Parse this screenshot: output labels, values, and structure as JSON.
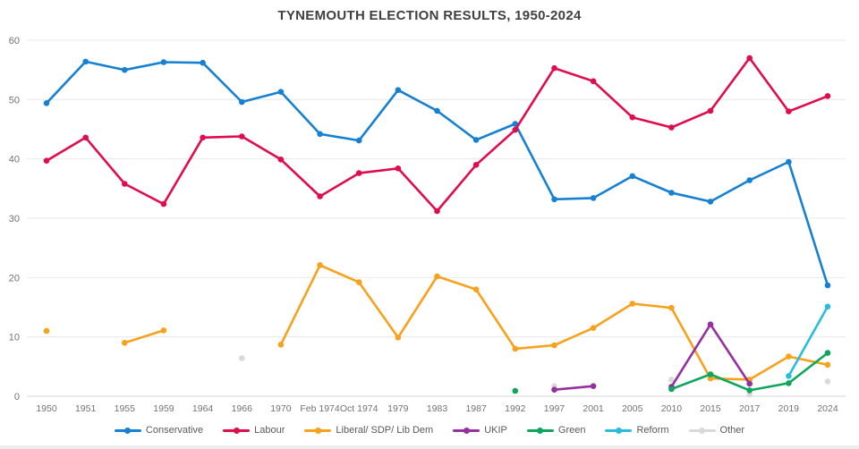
{
  "page": {
    "title": "TYNEMOUTH ELECTION RESULTS, 1950-2024"
  },
  "chart_data": {
    "type": "line",
    "title": "TYNEMOUTH ELECTION RESULTS, 1950-2024",
    "xlabel": "",
    "ylabel": "",
    "ylim": [
      0,
      60
    ],
    "yticks": [
      0,
      10,
      20,
      30,
      40,
      50,
      60
    ],
    "grid": true,
    "legend_position": "bottom",
    "categories": [
      "1950",
      "1951",
      "1955",
      "1959",
      "1964",
      "1966",
      "1970",
      "Feb 1974",
      "Oct 1974",
      "1979",
      "1983",
      "1987",
      "1992",
      "1997",
      "2001",
      "2005",
      "2010",
      "2015",
      "2017",
      "2019",
      "2024"
    ],
    "series": [
      {
        "name": "Conservative",
        "color": "#1680D2",
        "values": [
          49.4,
          56.4,
          55.0,
          56.3,
          56.2,
          49.6,
          51.3,
          44.2,
          43.1,
          51.6,
          48.1,
          43.2,
          45.9,
          33.2,
          33.4,
          37.1,
          34.3,
          32.8,
          36.4,
          39.5,
          18.7
        ]
      },
      {
        "name": "Labour",
        "color": "#E00C4E",
        "values": [
          39.7,
          43.6,
          35.8,
          32.4,
          43.6,
          43.8,
          39.9,
          33.7,
          37.6,
          38.4,
          31.2,
          39.0,
          44.9,
          55.3,
          53.1,
          47.0,
          45.3,
          48.1,
          57.0,
          48.0,
          50.6
        ]
      },
      {
        "name": "Liberal/ SDP/ Lib Dem",
        "color": "#F7A11C",
        "values": [
          11.0,
          null,
          9.0,
          11.1,
          null,
          null,
          8.7,
          22.1,
          19.2,
          9.9,
          20.2,
          18.0,
          8.0,
          8.6,
          11.5,
          15.6,
          14.9,
          3.0,
          2.8,
          6.7,
          5.3
        ]
      },
      {
        "name": "UKIP",
        "color": "#9430A0",
        "values": [
          null,
          null,
          null,
          null,
          null,
          null,
          null,
          null,
          null,
          null,
          null,
          null,
          null,
          1.1,
          1.7,
          null,
          1.6,
          12.1,
          2.1,
          null,
          null
        ]
      },
      {
        "name": "Green",
        "color": "#0EA65D",
        "values": [
          null,
          null,
          null,
          null,
          null,
          null,
          null,
          null,
          null,
          null,
          null,
          null,
          0.9,
          null,
          null,
          null,
          1.2,
          3.7,
          1.0,
          2.2,
          7.3
        ]
      },
      {
        "name": "Reform",
        "color": "#29BDDB",
        "values": [
          null,
          null,
          null,
          null,
          null,
          null,
          null,
          null,
          null,
          null,
          null,
          null,
          null,
          null,
          null,
          null,
          null,
          null,
          null,
          3.4,
          15.1
        ]
      },
      {
        "name": "Other",
        "color": "#D9D9D9",
        "values": [
          null,
          null,
          null,
          null,
          null,
          6.4,
          null,
          null,
          null,
          null,
          null,
          null,
          null,
          1.7,
          null,
          null,
          2.8,
          null,
          0.3,
          null,
          2.5
        ]
      }
    ]
  },
  "style": {
    "grid_color": "#E8E8E8",
    "axis_color": "#D6D6D6",
    "tick_label_color": "#737373",
    "title_color": "#3F3F3F",
    "legend_label_color": "#595959",
    "background": "#FFFFFF"
  }
}
